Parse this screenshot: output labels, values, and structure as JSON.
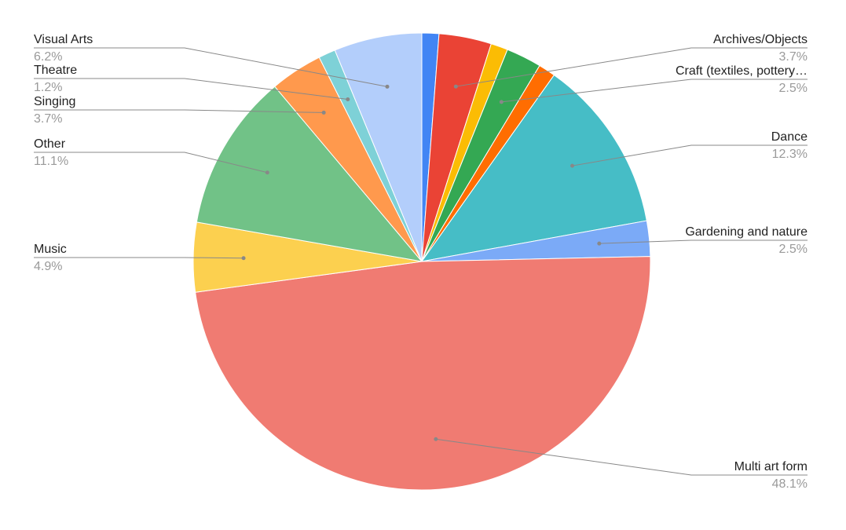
{
  "chart_data": {
    "type": "pie",
    "categories": [
      null,
      "Archives/Objects",
      null,
      "Craft (textiles, pottery…",
      null,
      "Dance",
      "Gardening and nature",
      "Multi art form",
      "Music",
      "Other",
      "Singing",
      "Theatre",
      "Visual Arts"
    ],
    "values": [
      1.2,
      3.7,
      1.2,
      2.5,
      1.2,
      12.3,
      2.5,
      48.1,
      4.9,
      11.1,
      3.7,
      1.2,
      6.2
    ],
    "value_labels": [
      null,
      "3.7%",
      null,
      "2.5%",
      null,
      "12.3%",
      "2.5%",
      "48.1%",
      "4.9%",
      "11.1%",
      "3.7%",
      "1.2%",
      "6.2%"
    ],
    "colors": [
      "#4285f4",
      "#ea4335",
      "#fbbc04",
      "#34a853",
      "#ff6d01",
      "#46bdc6",
      "#7baaf7",
      "#f07b72",
      "#fcd04f",
      "#71c287",
      "#ff994d",
      "#7ed1d7",
      "#b3cefb"
    ]
  }
}
